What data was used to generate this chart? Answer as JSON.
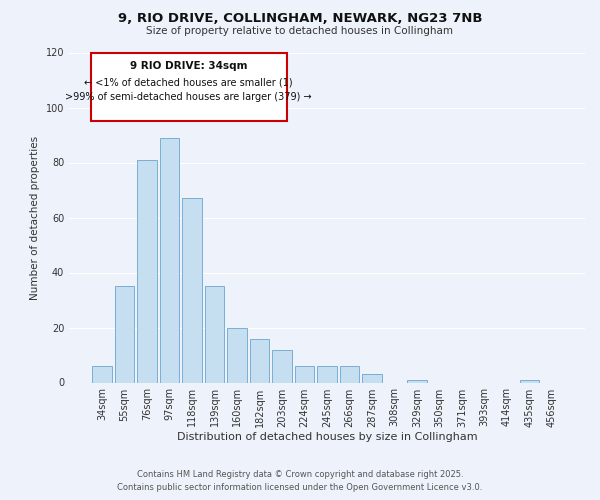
{
  "title": "9, RIO DRIVE, COLLINGHAM, NEWARK, NG23 7NB",
  "subtitle": "Size of property relative to detached houses in Collingham",
  "xlabel": "Distribution of detached houses by size in Collingham",
  "ylabel": "Number of detached properties",
  "bar_color": "#c5dff0",
  "bar_edge_color": "#7aaed6",
  "background_color": "#eef2fa",
  "categories": [
    "34sqm",
    "55sqm",
    "76sqm",
    "97sqm",
    "118sqm",
    "139sqm",
    "160sqm",
    "182sqm",
    "203sqm",
    "224sqm",
    "245sqm",
    "266sqm",
    "287sqm",
    "308sqm",
    "329sqm",
    "350sqm",
    "371sqm",
    "393sqm",
    "414sqm",
    "435sqm",
    "456sqm"
  ],
  "values": [
    6,
    35,
    81,
    89,
    67,
    35,
    20,
    16,
    12,
    6,
    6,
    6,
    3,
    0,
    1,
    0,
    0,
    0,
    0,
    1,
    0
  ],
  "ylim": [
    0,
    120
  ],
  "yticks": [
    0,
    20,
    40,
    60,
    80,
    100,
    120
  ],
  "annotation_title": "9 RIO DRIVE: 34sqm",
  "annotation_line1": "← <1% of detached houses are smaller (1)",
  "annotation_line2": ">99% of semi-detached houses are larger (379) →",
  "annotation_box_color": "#ffffff",
  "annotation_box_edge": "#cc0000",
  "footer1": "Contains HM Land Registry data © Crown copyright and database right 2025.",
  "footer2": "Contains public sector information licensed under the Open Government Licence v3.0."
}
